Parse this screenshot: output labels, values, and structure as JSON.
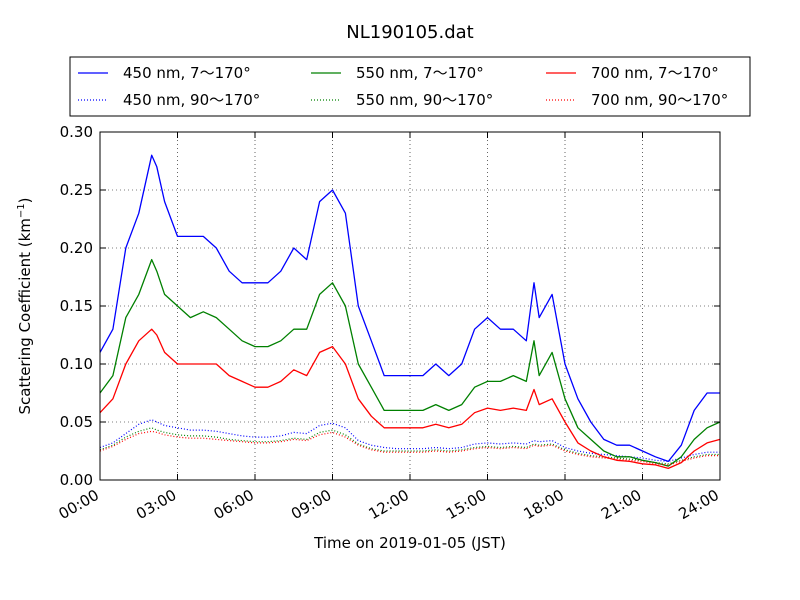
{
  "chart_data": {
    "type": "line",
    "title": "NL190105.dat",
    "xlabel": "Time on 2019-01-05 (JST)",
    "ylabel": "Scattering Coefficient (km",
    "ylabel_sup": "−1",
    "ylabel_end": ")",
    "x_unit": "hours",
    "xlim": [
      0,
      24
    ],
    "ylim": [
      0,
      0.3
    ],
    "x_ticks": [
      0,
      3,
      6,
      9,
      12,
      15,
      18,
      21,
      24
    ],
    "x_tick_labels": [
      "00:00",
      "03:00",
      "06:00",
      "09:00",
      "12:00",
      "15:00",
      "18:00",
      "21:00",
      "24:00"
    ],
    "y_ticks": [
      0,
      0.05,
      0.1,
      0.15,
      0.2,
      0.25,
      0.3
    ],
    "y_tick_labels": [
      "0.00",
      "0.05",
      "0.10",
      "0.15",
      "0.20",
      "0.25",
      "0.30"
    ],
    "grid": true,
    "legend_position": "top",
    "x": [
      0.0,
      0.5,
      1.0,
      1.5,
      2.0,
      2.2,
      2.5,
      3.0,
      3.5,
      4.0,
      4.5,
      5.0,
      5.5,
      6.0,
      6.5,
      7.0,
      7.5,
      8.0,
      8.5,
      9.0,
      9.5,
      10.0,
      10.5,
      11.0,
      11.5,
      12.0,
      12.5,
      13.0,
      13.5,
      14.0,
      14.5,
      15.0,
      15.5,
      16.0,
      16.5,
      16.8,
      17.0,
      17.5,
      18.0,
      18.5,
      19.0,
      19.5,
      20.0,
      20.5,
      21.0,
      21.5,
      22.0,
      22.5,
      23.0,
      23.5,
      24.0
    ],
    "series": [
      {
        "name": "450 nm, 7～170°",
        "color": "#0000ff",
        "style": "solid",
        "values": [
          0.11,
          0.13,
          0.2,
          0.23,
          0.28,
          0.27,
          0.24,
          0.21,
          0.21,
          0.21,
          0.2,
          0.18,
          0.17,
          0.17,
          0.17,
          0.18,
          0.2,
          0.19,
          0.24,
          0.25,
          0.23,
          0.15,
          0.12,
          0.09,
          0.09,
          0.09,
          0.09,
          0.1,
          0.09,
          0.1,
          0.13,
          0.14,
          0.13,
          0.13,
          0.12,
          0.17,
          0.14,
          0.16,
          0.1,
          0.07,
          0.05,
          0.035,
          0.03,
          0.03,
          0.025,
          0.02,
          0.016,
          0.03,
          0.06,
          0.075,
          0.075
        ]
      },
      {
        "name": "450 nm, 90～170°",
        "color": "#0000ff",
        "style": "dotted",
        "values": [
          0.028,
          0.032,
          0.04,
          0.048,
          0.052,
          0.05,
          0.047,
          0.045,
          0.043,
          0.043,
          0.042,
          0.04,
          0.038,
          0.037,
          0.037,
          0.038,
          0.041,
          0.04,
          0.047,
          0.049,
          0.045,
          0.034,
          0.03,
          0.028,
          0.027,
          0.027,
          0.027,
          0.028,
          0.027,
          0.028,
          0.031,
          0.032,
          0.031,
          0.032,
          0.031,
          0.034,
          0.033,
          0.034,
          0.028,
          0.025,
          0.023,
          0.022,
          0.021,
          0.02,
          0.019,
          0.017,
          0.016,
          0.019,
          0.022,
          0.024,
          0.024
        ]
      },
      {
        "name": "550 nm, 7～170°",
        "color": "#008000",
        "style": "solid",
        "values": [
          0.075,
          0.09,
          0.14,
          0.16,
          0.19,
          0.18,
          0.16,
          0.15,
          0.14,
          0.145,
          0.14,
          0.13,
          0.12,
          0.115,
          0.115,
          0.12,
          0.13,
          0.13,
          0.16,
          0.17,
          0.15,
          0.1,
          0.08,
          0.06,
          0.06,
          0.06,
          0.06,
          0.065,
          0.06,
          0.065,
          0.08,
          0.085,
          0.085,
          0.09,
          0.085,
          0.12,
          0.09,
          0.11,
          0.07,
          0.045,
          0.035,
          0.025,
          0.02,
          0.02,
          0.017,
          0.015,
          0.012,
          0.02,
          0.035,
          0.045,
          0.05
        ]
      },
      {
        "name": "550 nm, 90～170°",
        "color": "#008000",
        "style": "dotted",
        "values": [
          0.026,
          0.03,
          0.037,
          0.042,
          0.045,
          0.043,
          0.041,
          0.039,
          0.038,
          0.038,
          0.037,
          0.035,
          0.034,
          0.033,
          0.033,
          0.034,
          0.036,
          0.035,
          0.041,
          0.043,
          0.039,
          0.031,
          0.027,
          0.025,
          0.025,
          0.025,
          0.025,
          0.026,
          0.025,
          0.026,
          0.028,
          0.029,
          0.028,
          0.029,
          0.028,
          0.031,
          0.03,
          0.031,
          0.026,
          0.023,
          0.021,
          0.02,
          0.019,
          0.018,
          0.017,
          0.015,
          0.014,
          0.017,
          0.02,
          0.022,
          0.022
        ]
      },
      {
        "name": "700 nm, 7～170°",
        "color": "#ff0000",
        "style": "solid",
        "values": [
          0.058,
          0.07,
          0.1,
          0.12,
          0.13,
          0.125,
          0.11,
          0.1,
          0.1,
          0.1,
          0.1,
          0.09,
          0.085,
          0.08,
          0.08,
          0.085,
          0.095,
          0.09,
          0.11,
          0.115,
          0.1,
          0.07,
          0.055,
          0.045,
          0.045,
          0.045,
          0.045,
          0.048,
          0.045,
          0.048,
          0.058,
          0.062,
          0.06,
          0.062,
          0.06,
          0.078,
          0.065,
          0.07,
          0.05,
          0.032,
          0.025,
          0.02,
          0.017,
          0.016,
          0.014,
          0.013,
          0.01,
          0.015,
          0.025,
          0.032,
          0.035
        ]
      },
      {
        "name": "700 nm, 90～170°",
        "color": "#ff0000",
        "style": "dotted",
        "values": [
          0.025,
          0.029,
          0.035,
          0.04,
          0.042,
          0.041,
          0.039,
          0.037,
          0.036,
          0.036,
          0.035,
          0.034,
          0.033,
          0.032,
          0.032,
          0.033,
          0.035,
          0.034,
          0.039,
          0.041,
          0.037,
          0.03,
          0.026,
          0.024,
          0.024,
          0.024,
          0.024,
          0.025,
          0.024,
          0.025,
          0.027,
          0.028,
          0.027,
          0.028,
          0.027,
          0.03,
          0.029,
          0.03,
          0.025,
          0.022,
          0.02,
          0.019,
          0.018,
          0.017,
          0.016,
          0.014,
          0.013,
          0.016,
          0.019,
          0.021,
          0.021
        ]
      }
    ]
  }
}
